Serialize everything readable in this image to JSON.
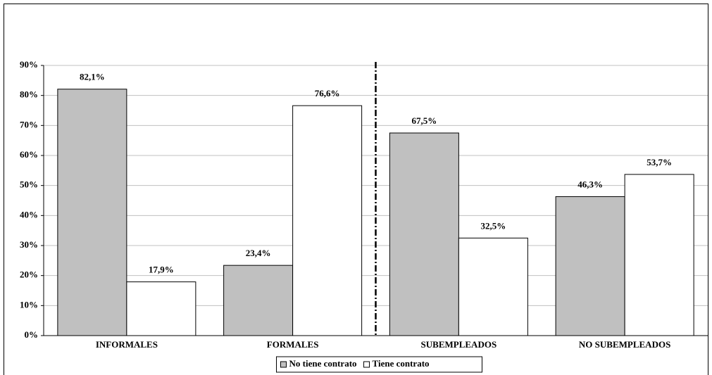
{
  "chart_data": {
    "type": "bar",
    "categories": [
      "INFORMALES",
      "FORMALES",
      "SUBEMPLEADOS",
      "NO SUBEMPLEADOS"
    ],
    "series": [
      {
        "name": "No tiene contrato",
        "color": "#c0c0c0",
        "values": [
          82.1,
          23.4,
          67.5,
          46.3
        ],
        "value_labels": [
          "82,1%",
          "23,4%",
          "67,5%",
          "46,3%"
        ]
      },
      {
        "name": "Tiene contrato",
        "color": "#ffffff",
        "values": [
          17.9,
          76.6,
          32.5,
          53.7
        ],
        "value_labels": [
          "17,9%",
          "76,6%",
          "32,5%",
          "53,7%"
        ]
      }
    ],
    "ylim": [
      0,
      90
    ],
    "yticks": [
      {
        "value": 0,
        "label": "0%"
      },
      {
        "value": 10,
        "label": "10%"
      },
      {
        "value": 20,
        "label": "20%"
      },
      {
        "value": 30,
        "label": "30%"
      },
      {
        "value": 40,
        "label": "40%"
      },
      {
        "value": 50,
        "label": "50%"
      },
      {
        "value": 60,
        "label": "60%"
      },
      {
        "value": 70,
        "label": "70%"
      },
      {
        "value": 80,
        "label": "80%"
      },
      {
        "value": 90,
        "label": "90%"
      }
    ],
    "grid": true,
    "legend": "bottom"
  }
}
